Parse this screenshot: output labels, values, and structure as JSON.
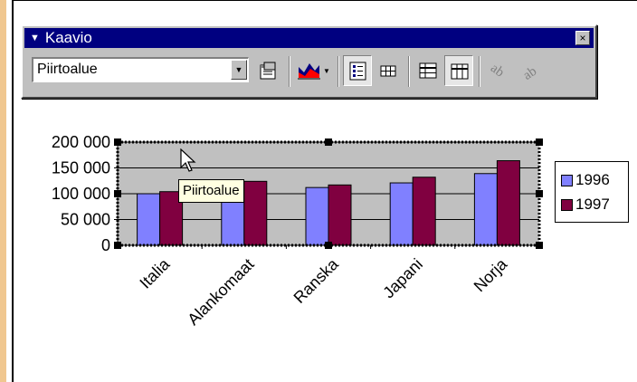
{
  "toolbar": {
    "title": "Kaavio",
    "close_glyph": "×",
    "menu_glyph": "▼",
    "dropdown_value": "Piirtoalue",
    "buttons": [
      {
        "name": "format-icon"
      },
      {
        "name": "chart-type-icon"
      },
      {
        "name": "legend-icon",
        "pressed": true
      },
      {
        "name": "data-table-icon"
      },
      {
        "name": "by-row-icon"
      },
      {
        "name": "by-column-icon",
        "pressed": true
      },
      {
        "name": "angle-text-down-icon"
      },
      {
        "name": "angle-text-up-icon"
      }
    ]
  },
  "tooltip": "Piirtoalue",
  "chart_data": {
    "type": "bar",
    "categories": [
      "Italia",
      "Alankomaat",
      "Ranska",
      "Japani",
      "Norja"
    ],
    "series": [
      {
        "name": "1996",
        "color": "#8080ff",
        "values": [
          100000,
          88000,
          112000,
          121000,
          139000
        ]
      },
      {
        "name": "1997",
        "color": "#800040",
        "values": [
          104000,
          124000,
          117000,
          132000,
          164000
        ]
      }
    ],
    "y_ticks": [
      "200 000",
      "150 000",
      "100 000",
      "50 000",
      "0"
    ],
    "ylim": [
      0,
      200000
    ],
    "grid": true,
    "plot_background": "#c0c0c0",
    "legend_position": "right"
  },
  "legend": {
    "items": [
      {
        "label": "1996",
        "color": "#8080ff"
      },
      {
        "label": "1997",
        "color": "#800040"
      }
    ]
  }
}
